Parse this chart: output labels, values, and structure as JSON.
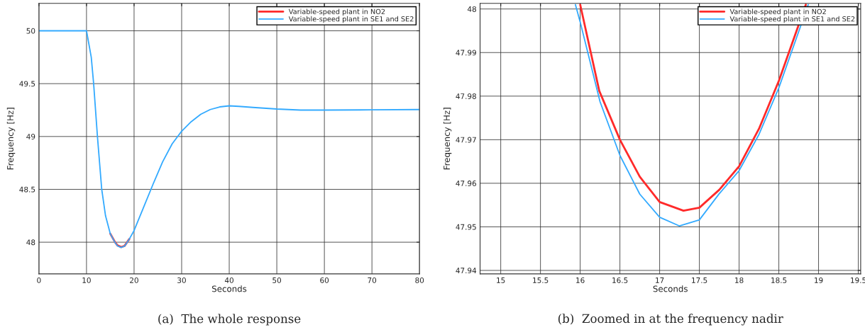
{
  "chart_data": [
    {
      "type": "line",
      "xlabel": "Seconds",
      "ylabel": "Frequency [Hz]",
      "annotations": [
        "(a)  The whole response"
      ],
      "xlim": [
        0,
        80
      ],
      "xticks": [
        0,
        10,
        20,
        30,
        40,
        50,
        60,
        70,
        80
      ],
      "ylim": [
        47.7,
        50.26
      ],
      "yticks": [
        48,
        48.5,
        49,
        49.5,
        50
      ],
      "grid": true,
      "legend": "top right",
      "series": [
        {
          "name": "Variable-speed plant in NO2",
          "color": "#ff2a2a",
          "x": [
            15,
            16,
            16.5,
            17.3,
            18,
            19
          ],
          "values": [
            48.08,
            48.0,
            47.97,
            47.954,
            47.965,
            48.03
          ]
        },
        {
          "name": "Variable-speed plant in SE1 and SE2",
          "color": "#33aaff",
          "x": [
            0,
            10,
            11,
            11.5,
            12.3,
            13.2,
            14,
            15,
            16,
            16.5,
            17.25,
            18,
            19,
            20,
            22,
            24,
            26,
            28,
            30,
            32,
            34,
            36,
            38,
            40,
            42,
            45,
            50,
            55,
            60,
            70,
            80
          ],
          "values": [
            50,
            50,
            49.75,
            49.5,
            49.0,
            48.5,
            48.25,
            48.08,
            47.997,
            47.966,
            47.95,
            47.963,
            48.03,
            48.11,
            48.33,
            48.55,
            48.76,
            48.93,
            49.05,
            49.14,
            49.21,
            49.255,
            49.28,
            49.29,
            49.285,
            49.275,
            49.26,
            49.25,
            49.25,
            49.252,
            49.255
          ]
        }
      ]
    },
    {
      "type": "line",
      "xlabel": "Seconds",
      "ylabel": "Frequency [Hz]",
      "annotations": [
        "(b)  Zoomed in at the frequency nadir"
      ],
      "xlim": [
        14.74,
        19.53
      ],
      "xticks": [
        15,
        15.5,
        16,
        16.5,
        17,
        17.5,
        18,
        18.5,
        19,
        19.5
      ],
      "ylim": [
        47.9392,
        48.0013
      ],
      "yticks": [
        47.94,
        47.95,
        47.96,
        47.97,
        47.98,
        47.99,
        48
      ],
      "grid": true,
      "legend": "top right",
      "series": [
        {
          "name": "Variable-speed plant in NO2",
          "color": "#ff2a2a",
          "x": [
            16.0,
            16.24,
            16.5,
            16.75,
            17.0,
            17.3,
            17.5,
            17.75,
            18.0,
            18.25,
            18.5,
            18.84
          ],
          "values": [
            48.001,
            47.9812,
            47.97,
            47.9615,
            47.9557,
            47.9537,
            47.9544,
            47.9585,
            47.9639,
            47.9725,
            47.9835,
            48.001
          ]
        },
        {
          "name": "Variable-speed plant in SE1 and SE2",
          "color": "#33aaff",
          "x": [
            15.94,
            16.0,
            16.25,
            16.5,
            16.75,
            17.0,
            17.25,
            17.5,
            17.75,
            18.0,
            18.25,
            18.5,
            18.87
          ],
          "values": [
            48.001,
            47.997,
            47.9787,
            47.9664,
            47.9575,
            47.9522,
            47.9502,
            47.9516,
            47.9576,
            47.9629,
            47.9712,
            47.9819,
            48.001
          ]
        }
      ]
    }
  ]
}
